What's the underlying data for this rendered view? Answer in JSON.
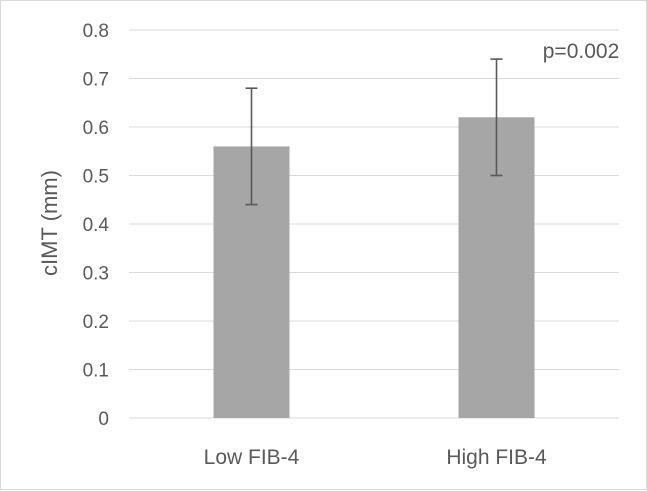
{
  "chart_data": {
    "type": "bar",
    "categories": [
      "Low FIB-4",
      "High FIB-4"
    ],
    "values": [
      0.56,
      0.62
    ],
    "error": [
      0.12,
      0.12
    ],
    "ylabel": "cIMT (mm)",
    "xlabel": "",
    "title": "",
    "ylim": [
      0,
      0.8
    ],
    "yticks": [
      "0",
      "0.1",
      "0.2",
      "0.3",
      "0.4",
      "0.5",
      "0.6",
      "0.7",
      "0.8"
    ],
    "annotation": "p=0.002",
    "grid": true,
    "bar_color": "#a6a6a6",
    "error_color": "#595959"
  }
}
